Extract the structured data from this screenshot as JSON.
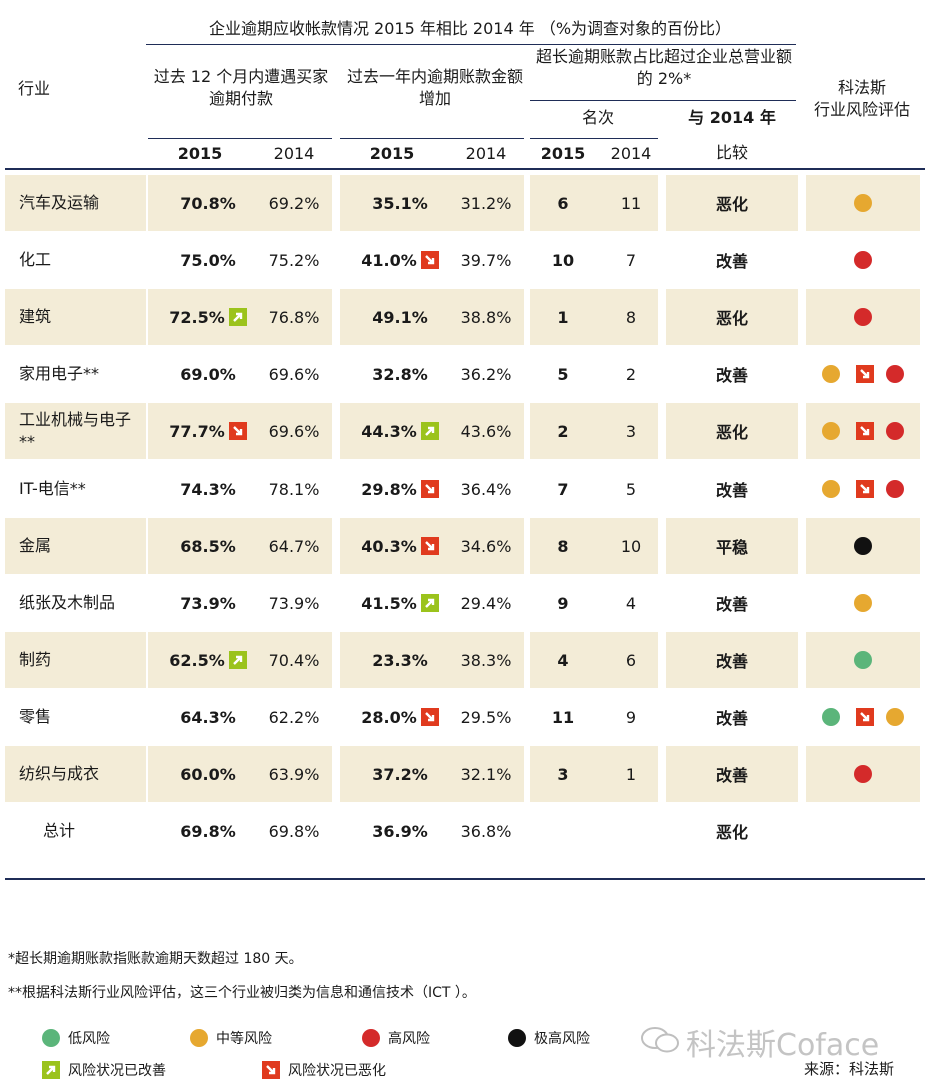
{
  "header": {
    "main_title": "企业逾期应收帐款情况 2015 年相比 2014 年 （%为调查对象的百份比）",
    "industry_label": "行业",
    "col_a": "过去 12 个月内遭遇买家逾期付款",
    "col_b": "过去一年内逾期账款金额增加",
    "col_c": "超长逾期账款占比超过企业总营业额的 2%*",
    "rank_label": "名次",
    "compare_label_1": "与 2014 年",
    "compare_label_2": "比较",
    "risk_label_1": "科法斯",
    "risk_label_2": "行业风险评估",
    "y2015": "2015",
    "y2014": "2014"
  },
  "colors": {
    "low": "#5bb57a",
    "medium": "#e6a830",
    "high": "#d42a2a",
    "very_high": "#111111",
    "improved": "#9bc31c",
    "worsened": "#e03a1e",
    "band": "#f3ecd7",
    "rule": "#1f2d57"
  },
  "rows": [
    {
      "industry": "汽车及运输",
      "a2015": "70.8%",
      "a2015_arrow": "",
      "a2014": "69.2%",
      "b2015": "35.1%",
      "b2015_arrow": "",
      "b2014": "31.2%",
      "r2015": "6",
      "r2014": "11",
      "compare": "恶化",
      "risk": [
        "medium"
      ]
    },
    {
      "industry": "化工",
      "a2015": "75.0%",
      "a2015_arrow": "",
      "a2014": "75.2%",
      "b2015": "41.0%",
      "b2015_arrow": "worsened",
      "b2014": "39.7%",
      "r2015": "10",
      "r2014": "7",
      "compare": "改善",
      "risk": [
        "high"
      ]
    },
    {
      "industry": "建筑",
      "a2015": "72.5%",
      "a2015_arrow": "improved",
      "a2014": "76.8%",
      "b2015": "49.1%",
      "b2015_arrow": "",
      "b2014": "38.8%",
      "r2015": "1",
      "r2014": "8",
      "compare": "恶化",
      "risk": [
        "high"
      ]
    },
    {
      "industry": "家用电子**",
      "a2015": "69.0%",
      "a2015_arrow": "",
      "a2014": "69.6%",
      "b2015": "32.8%",
      "b2015_arrow": "",
      "b2014": "36.2%",
      "r2015": "5",
      "r2014": "2",
      "compare": "改善",
      "risk": [
        "medium",
        "worsened",
        "high"
      ]
    },
    {
      "industry": "工业机械与电子**",
      "a2015": "77.7%",
      "a2015_arrow": "worsened",
      "a2014": "69.6%",
      "b2015": "44.3%",
      "b2015_arrow": "improved",
      "b2014": "43.6%",
      "r2015": "2",
      "r2014": "3",
      "compare": "恶化",
      "risk": [
        "medium",
        "worsened",
        "high"
      ]
    },
    {
      "industry": "IT-电信**",
      "a2015": "74.3%",
      "a2015_arrow": "",
      "a2014": "78.1%",
      "b2015": "29.8%",
      "b2015_arrow": "worsened",
      "b2014": "36.4%",
      "r2015": "7",
      "r2014": "5",
      "compare": "改善",
      "risk": [
        "medium",
        "worsened",
        "high"
      ]
    },
    {
      "industry": "金属",
      "a2015": "68.5%",
      "a2015_arrow": "",
      "a2014": "64.7%",
      "b2015": "40.3%",
      "b2015_arrow": "worsened",
      "b2014": "34.6%",
      "r2015": "8",
      "r2014": "10",
      "compare": "平稳",
      "risk": [
        "very_high"
      ]
    },
    {
      "industry": "纸张及木制品",
      "a2015": "73.9%",
      "a2015_arrow": "",
      "a2014": "73.9%",
      "b2015": "41.5%",
      "b2015_arrow": "improved",
      "b2014": "29.4%",
      "r2015": "9",
      "r2014": "4",
      "compare": "改善",
      "risk": [
        "medium"
      ]
    },
    {
      "industry": "制药",
      "a2015": "62.5%",
      "a2015_arrow": "improved",
      "a2014": "70.4%",
      "b2015": "23.3%",
      "b2015_arrow": "",
      "b2014": "38.3%",
      "r2015": "4",
      "r2014": "6",
      "compare": "改善",
      "risk": [
        "low"
      ]
    },
    {
      "industry": "零售",
      "a2015": "64.3%",
      "a2015_arrow": "",
      "a2014": "62.2%",
      "b2015": "28.0%",
      "b2015_arrow": "worsened",
      "b2014": "29.5%",
      "r2015": "11",
      "r2014": "9",
      "compare": "改善",
      "risk": [
        "low",
        "worsened",
        "medium"
      ]
    },
    {
      "industry": "纺织与成衣",
      "a2015": "60.0%",
      "a2015_arrow": "",
      "a2014": "63.9%",
      "b2015": "37.2%",
      "b2015_arrow": "",
      "b2014": "32.1%",
      "r2015": "3",
      "r2014": "1",
      "compare": "改善",
      "risk": [
        "high"
      ]
    }
  ],
  "total": {
    "industry": "总计",
    "a2015": "69.8%",
    "a2014": "69.8%",
    "b2015": "36.9%",
    "b2014": "36.8%",
    "compare": "恶化"
  },
  "footnotes": {
    "note1": "*超长期逾期账款指账款逾期天数超过 180 天。",
    "note2": "**根据科法斯行业风险评估，这三个行业被归类为信息和通信技术（ICT ）。"
  },
  "legend": {
    "low": "低风险",
    "medium": "中等风险",
    "high": "高风险",
    "very_high": "极高风险",
    "improved": "风险状况已改善",
    "worsened": "风险状况已恶化"
  },
  "watermark": "科法斯Coface",
  "source": "来源：科法斯"
}
